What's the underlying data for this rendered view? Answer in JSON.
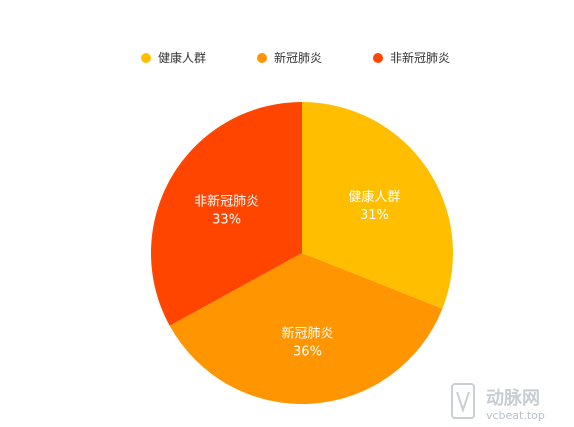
{
  "chart_data": {
    "type": "pie",
    "categories": [
      "健康人群",
      "新冠肺炎",
      "非新冠肺炎"
    ],
    "values": [
      31,
      36,
      33
    ],
    "percent_labels": [
      "31%",
      "36%",
      "33%"
    ],
    "colors": [
      "#FFBF00",
      "#FF9500",
      "#FF4500"
    ],
    "legend_position": "top"
  },
  "watermark": {
    "logo": "VB",
    "brand": "动脉网",
    "url": "vcbeat.top"
  }
}
